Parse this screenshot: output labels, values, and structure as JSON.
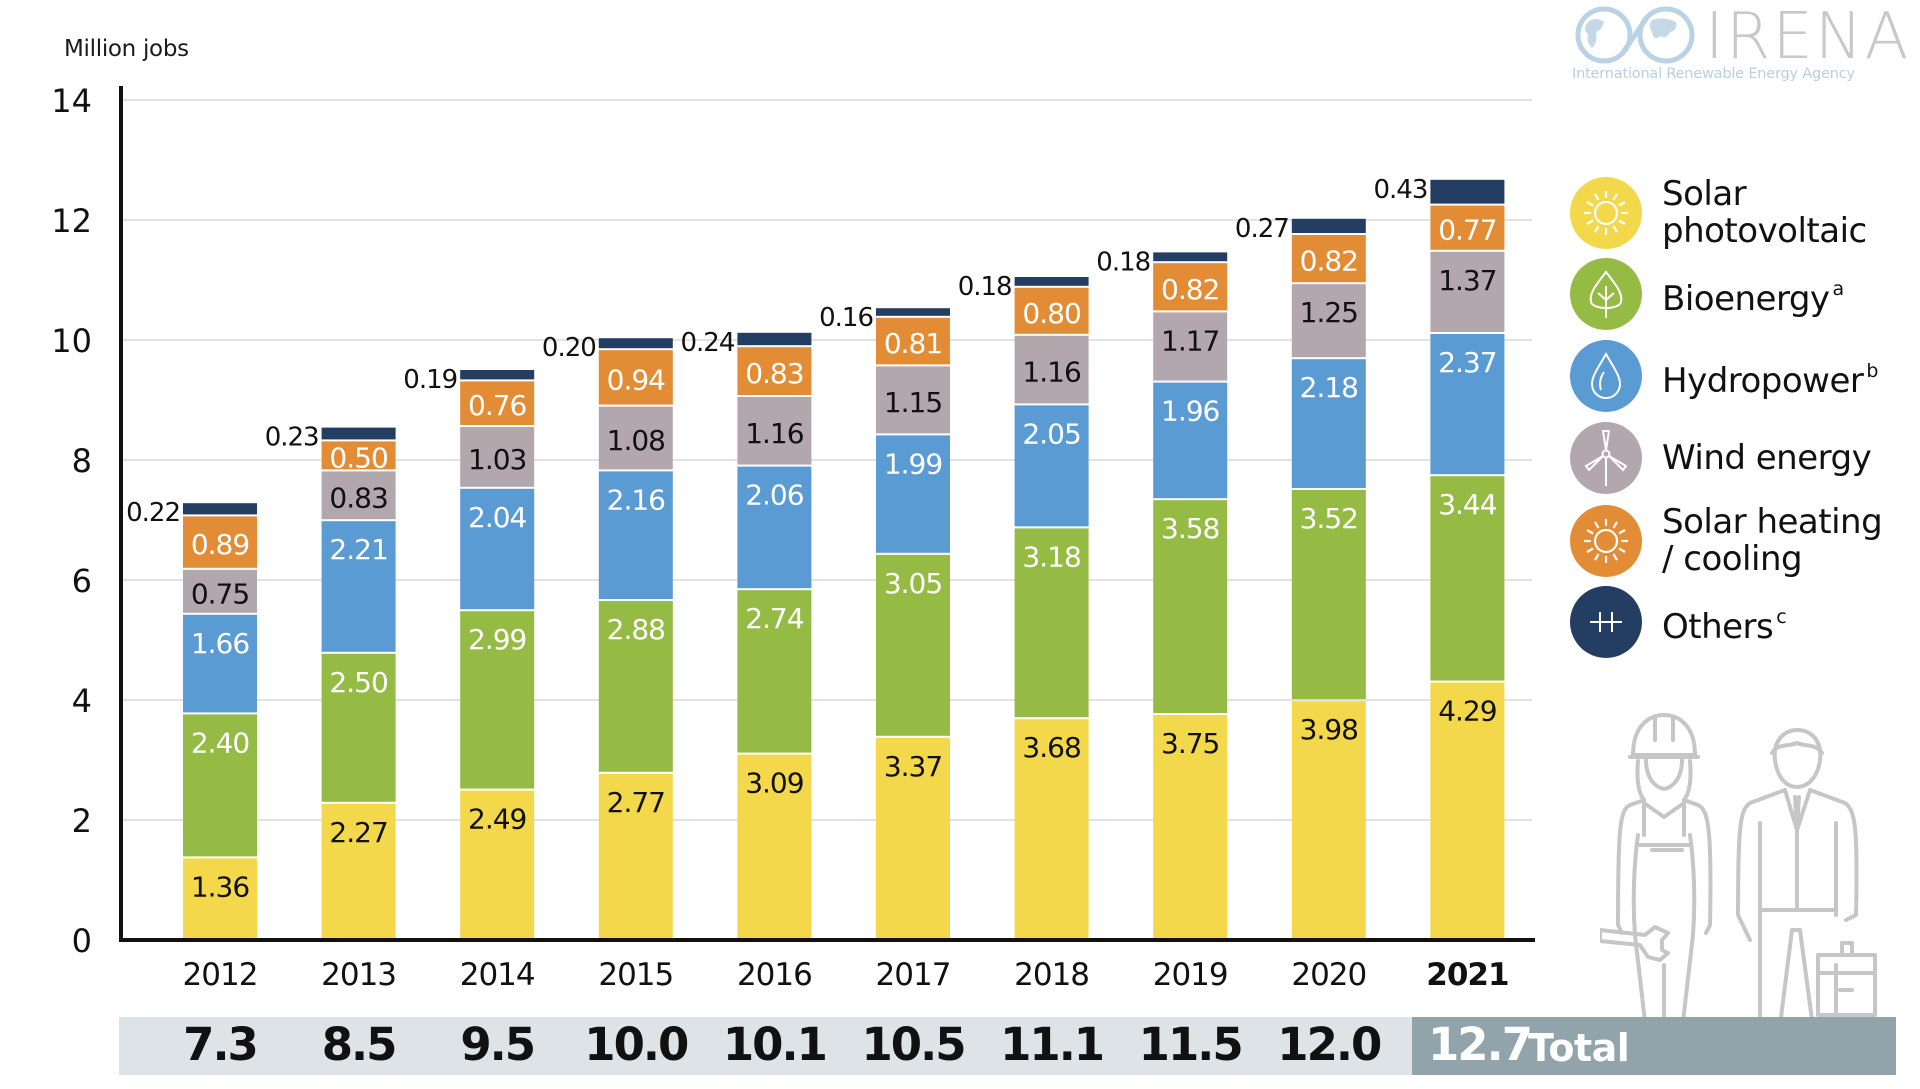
{
  "chart_data": {
    "type": "bar",
    "stacked": true,
    "title": "",
    "ylabel": "Million jobs",
    "xlabel": "",
    "ylim": [
      0,
      14
    ],
    "yticks": [
      0,
      2,
      4,
      6,
      8,
      10,
      12,
      14
    ],
    "grid": true,
    "legend_position": "right",
    "categories": [
      "2012",
      "2013",
      "2014",
      "2015",
      "2016",
      "2017",
      "2018",
      "2019",
      "2020",
      "2021"
    ],
    "highlight_category": "2021",
    "series": [
      {
        "name": "Solar photovoltaic",
        "superscript": "",
        "color": "#f2d84a",
        "label_color": "#111111",
        "icon": "sun-icon",
        "values": [
          1.36,
          2.27,
          2.49,
          2.77,
          3.09,
          3.37,
          3.68,
          3.75,
          3.98,
          4.29
        ]
      },
      {
        "name": "Bioenergy",
        "superscript": "a",
        "color": "#95bb45",
        "label_color": "#ffffff",
        "icon": "leaf-icon",
        "values": [
          2.4,
          2.5,
          2.99,
          2.88,
          2.74,
          3.05,
          3.18,
          3.58,
          3.52,
          3.44
        ]
      },
      {
        "name": "Hydropower",
        "superscript": "b",
        "color": "#5b9bd3",
        "label_color": "#ffffff",
        "icon": "water-drop-icon",
        "values": [
          1.66,
          2.21,
          2.04,
          2.16,
          2.06,
          1.99,
          2.05,
          1.96,
          2.18,
          2.37
        ]
      },
      {
        "name": "Wind energy",
        "superscript": "",
        "color": "#b3a7ae",
        "label_color": "#111111",
        "icon": "wind-turbine-icon",
        "values": [
          0.75,
          0.83,
          1.03,
          1.08,
          1.16,
          1.15,
          1.16,
          1.17,
          1.25,
          1.37
        ]
      },
      {
        "name": "Solar heating / cooling",
        "superscript": "",
        "color": "#e28c35",
        "label_color": "#ffffff",
        "icon": "sun-icon",
        "values": [
          0.89,
          0.5,
          0.76,
          0.94,
          0.83,
          0.81,
          0.8,
          0.82,
          0.82,
          0.77
        ]
      },
      {
        "name": "Others",
        "superscript": "c",
        "color": "#243d62",
        "label_color": "#111111",
        "icon": "plus-plus-icon",
        "label_outside": true,
        "values": [
          0.22,
          0.23,
          0.19,
          0.2,
          0.24,
          0.16,
          0.18,
          0.18,
          0.27,
          0.43
        ]
      }
    ],
    "value_labels": [
      [
        "1.36",
        "2.27",
        "2.49",
        "2.77",
        "3.09",
        "3.37",
        "3.68",
        "3.75",
        "3.98",
        "4.29"
      ],
      [
        "2.40",
        "2.50",
        "2.99",
        "2.88",
        "2.74",
        "3.05",
        "3.18",
        "3.58",
        "3.52",
        "3.44"
      ],
      [
        "1.66",
        "2.21",
        "2.04",
        "2.16",
        "2.06",
        "1.99",
        "2.05",
        "1.96",
        "2.18",
        "2.37"
      ],
      [
        "0.75",
        "0.83",
        "1.03",
        "1.08",
        "1.16",
        "1.15",
        "1.16",
        "1.17",
        "1.25",
        "1.37"
      ],
      [
        "0.89",
        "0.50",
        "0.76",
        "0.94",
        "0.83",
        "0.81",
        "0.80",
        "0.82",
        "0.82",
        "0.77"
      ],
      [
        "0.22",
        "0.23",
        "0.19",
        "0.20",
        "0.24",
        "0.16",
        "0.18",
        "0.18",
        "0.27",
        "0.43"
      ]
    ],
    "totals": [
      "7.3",
      "8.5",
      "9.5",
      "10.0",
      "10.1",
      "10.5",
      "11.1",
      "11.5",
      "12.0",
      "12.7"
    ],
    "totals_label": "Total"
  },
  "header": {
    "unit_label": "Million jobs"
  },
  "logo": {
    "name": "IRENA",
    "subtitle": "International Renewable Energy Agency"
  },
  "colors": {
    "axis": "#111111",
    "grid": "#e3e3e3",
    "totals_band": "#dde3e7",
    "totals_band_highlight": "#91a3ab",
    "illustration": "#c6c6c6",
    "logo_globe": "#b9d2e6"
  }
}
